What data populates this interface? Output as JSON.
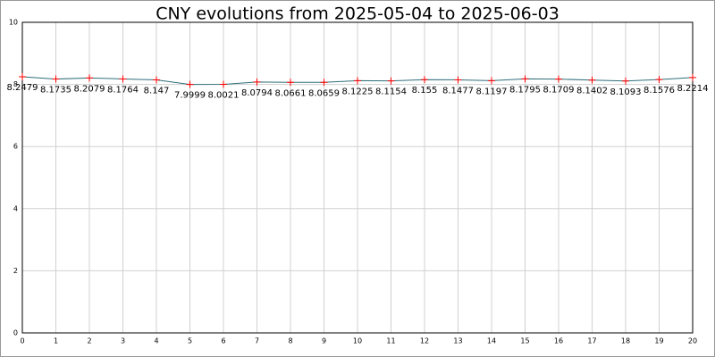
{
  "chart_data": {
    "type": "line",
    "title": "CNY evolutions from 2025-05-04 to 2025-06-03",
    "x": [
      0,
      1,
      2,
      3,
      4,
      5,
      6,
      7,
      8,
      9,
      10,
      11,
      12,
      13,
      14,
      15,
      16,
      17,
      18,
      19,
      20
    ],
    "values": [
      8.2479,
      8.1735,
      8.2079,
      8.1764,
      8.147,
      7.9999,
      8.0021,
      8.0794,
      8.0661,
      8.0659,
      8.1225,
      8.1154,
      8.155,
      8.1477,
      8.1197,
      8.1795,
      8.1709,
      8.1402,
      8.1093,
      8.1576,
      8.2214
    ],
    "color": "#2f6f7a",
    "marker_color": "#ff0000",
    "xlim": [
      0,
      20
    ],
    "xticks": [
      0,
      1,
      2,
      3,
      4,
      5,
      6,
      7,
      8,
      9,
      10,
      11,
      12,
      13,
      14,
      15,
      16,
      17,
      18,
      19,
      20
    ],
    "ylim": [
      0,
      10
    ],
    "yticks": [
      0,
      2,
      4,
      6,
      8,
      10
    ],
    "grid": true
  }
}
